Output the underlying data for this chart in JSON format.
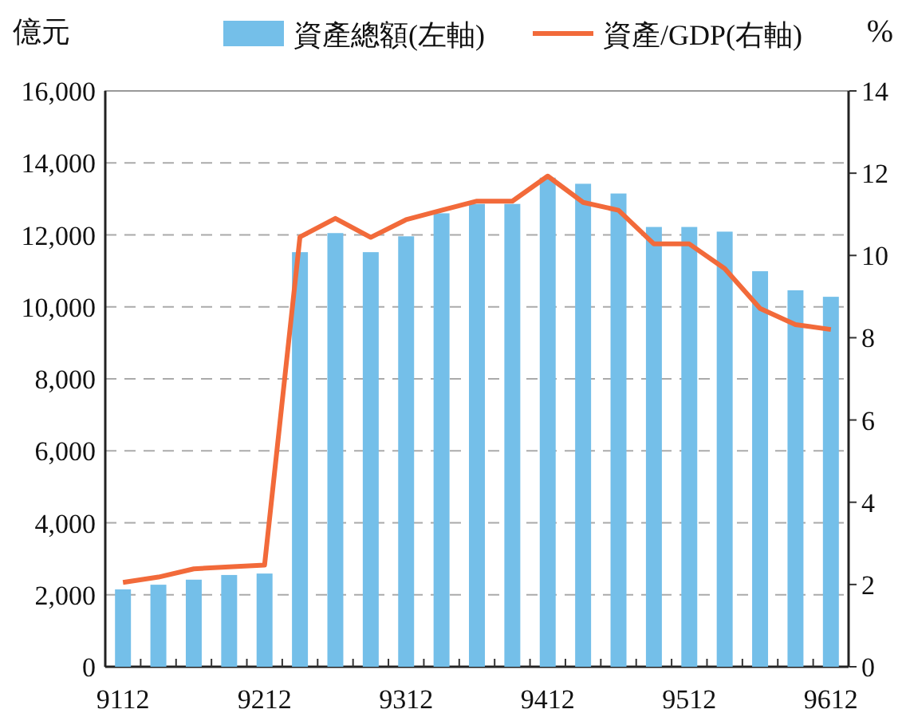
{
  "chart_data": {
    "type": "bar",
    "ylabel": "億元",
    "y2label": "%",
    "legend": "top",
    "grid": "y",
    "categories": [
      "9112",
      null,
      null,
      null,
      "9212",
      null,
      null,
      null,
      "9312",
      null,
      null,
      null,
      "9412",
      null,
      null,
      null,
      "9512",
      null,
      null,
      null,
      "9612"
    ],
    "ylim": [
      0,
      16000
    ],
    "yticks": [
      0,
      {
        "value": 2000,
        "label": "2,000"
      },
      {
        "value": 4000,
        "label": "4,000"
      },
      {
        "value": 6000,
        "label": "6,000"
      },
      {
        "value": 8000,
        "label": "8,000"
      },
      {
        "value": 10000,
        "label": "10,000"
      },
      {
        "value": 12000,
        "label": "12,000"
      },
      {
        "value": 14000,
        "label": "14,000"
      },
      {
        "value": 16000,
        "label": "16,000"
      }
    ],
    "y2lim": [
      0,
      14
    ],
    "y2ticks": [
      0,
      2,
      4,
      6,
      8,
      10,
      12,
      14
    ],
    "series": [
      {
        "name": "資產總額(左軸)",
        "color": "#74bfe9",
        "values": [
          2150,
          2280,
          2420,
          2550,
          2590,
          11520,
          12050,
          11520,
          11960,
          12600,
          12860,
          12860,
          13590,
          13420,
          13150,
          12220,
          12220,
          12090,
          10990,
          10460,
          10280
        ]
      },
      {
        "name": "資產/GDP(右軸)",
        "type": "line",
        "axis": "y2",
        "color": "#f26a3a",
        "line_style": "solid",
        "marker": "none",
        "values": [
          2.05,
          2.18,
          2.38,
          2.43,
          2.47,
          10.45,
          10.9,
          10.44,
          10.87,
          11.1,
          11.32,
          11.32,
          11.93,
          11.29,
          11.1,
          10.28,
          10.28,
          9.68,
          8.71,
          8.32,
          8.2
        ]
      }
    ]
  }
}
